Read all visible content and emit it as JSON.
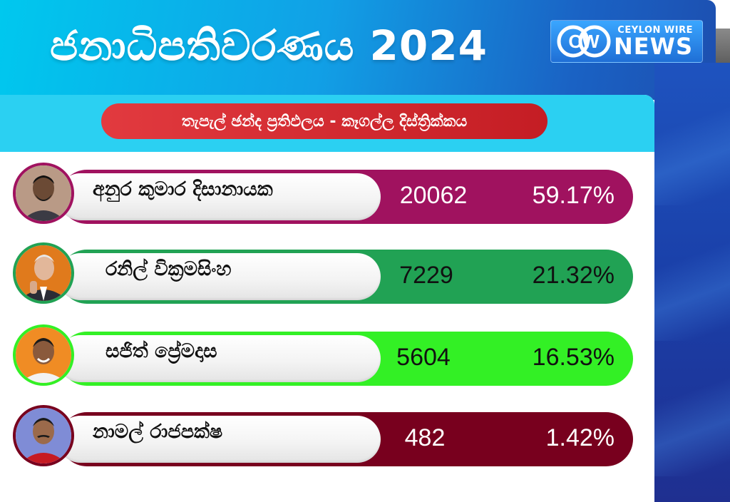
{
  "header": {
    "title": "ජනාධිපතිවරණය 2024",
    "brand": {
      "top": "CEYLON WIRE",
      "bottom": "NEWS",
      "logo_letters": "CW"
    }
  },
  "subheader": {
    "label": "තැපැල් ඡන්ද ප්‍රතිඵලය  -   කෑගල්ල   දිස්ත්‍රික්කය"
  },
  "colors": {
    "header_light": "#00c8ee",
    "header_dark": "#1d4fb0",
    "subheader_band": "#2bd0f2",
    "subheader_pill": "#d42a30"
  },
  "candidates": [
    {
      "name": "අනුර කුමාර දිසානායක",
      "votes": "20062",
      "percent": "59.17%",
      "color": "#a0125f",
      "text_color": "#ffffff",
      "photo": "candidate-photo"
    },
    {
      "name": "රනිල් වික්‍රමසිංහ",
      "votes": "7229",
      "percent": "21.32%",
      "color": "#21a254",
      "text_color": "#111111",
      "photo": "candidate-photo"
    },
    {
      "name": "සජිත් ප්‍රේමදාස",
      "votes": "5604",
      "percent": "16.53%",
      "color": "#33f025",
      "text_color": "#111111",
      "photo": "candidate-photo"
    },
    {
      "name": "නාමල් රාජපක්ෂ",
      "votes": "482",
      "percent": "1.42%",
      "color": "#78001e",
      "text_color": "#ffffff",
      "photo": "candidate-photo"
    }
  ]
}
